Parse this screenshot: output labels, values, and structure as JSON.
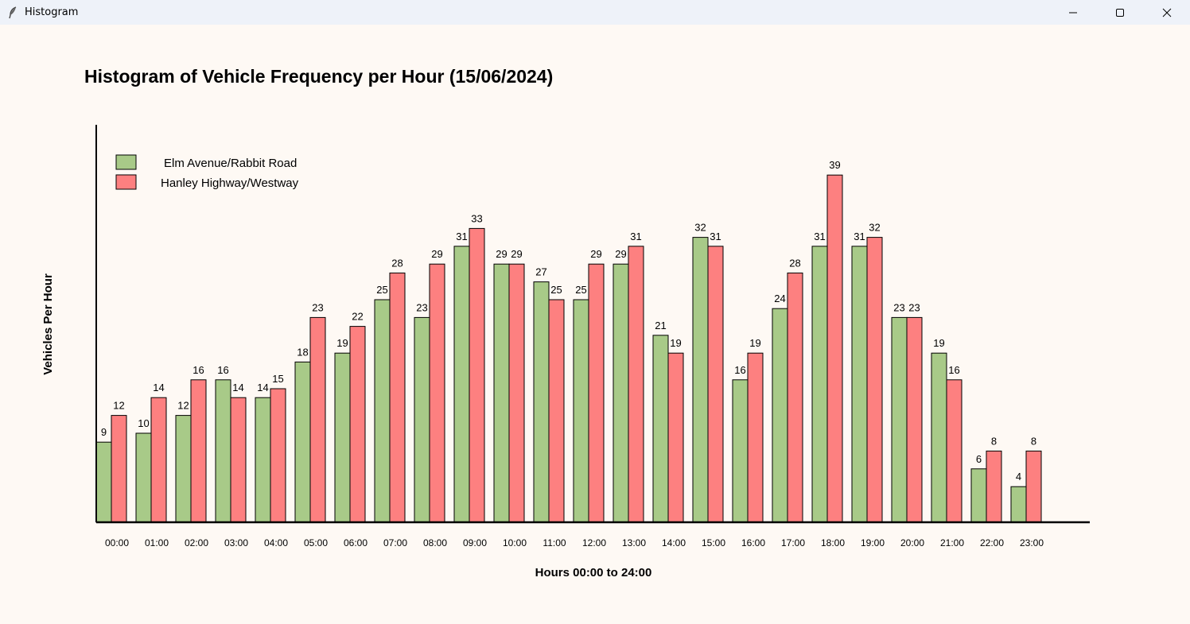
{
  "window": {
    "title": "Histogram",
    "icon": "feather-icon",
    "controls": [
      "minimize-icon",
      "maximize-icon",
      "close-icon"
    ]
  },
  "colors": {
    "series1": "#a8ca88",
    "series2": "#fd8080",
    "background": "#fef9f4",
    "titlebar": "#eef2f9"
  },
  "chart_data": {
    "type": "bar",
    "title": "Histogram of Vehicle Frequency per Hour (15/06/2024)",
    "xlabel": "Hours 00:00 to 24:00",
    "ylabel": "Vehicles Per Hour",
    "categories": [
      "00:00",
      "01:00",
      "02:00",
      "03:00",
      "04:00",
      "05:00",
      "06:00",
      "07:00",
      "08:00",
      "09:00",
      "10:00",
      "11:00",
      "12:00",
      "13:00",
      "14:00",
      "15:00",
      "16:00",
      "17:00",
      "18:00",
      "19:00",
      "20:00",
      "21:00",
      "22:00",
      "23:00"
    ],
    "series": [
      {
        "name": "Elm Avenue/Rabbit Road",
        "color": "#a8ca88",
        "values": [
          9,
          10,
          12,
          16,
          14,
          18,
          19,
          25,
          23,
          31,
          29,
          27,
          25,
          29,
          21,
          32,
          16,
          24,
          31,
          31,
          23,
          19,
          6,
          4
        ]
      },
      {
        "name": "Hanley Highway/Westway",
        "color": "#fd8080",
        "values": [
          12,
          14,
          16,
          14,
          15,
          23,
          22,
          28,
          29,
          33,
          29,
          25,
          29,
          31,
          19,
          31,
          19,
          28,
          39,
          32,
          23,
          16,
          8,
          8
        ]
      }
    ],
    "ylim": [
      0,
      45
    ],
    "grid": false,
    "legend": "top-left",
    "data_labels": true
  }
}
